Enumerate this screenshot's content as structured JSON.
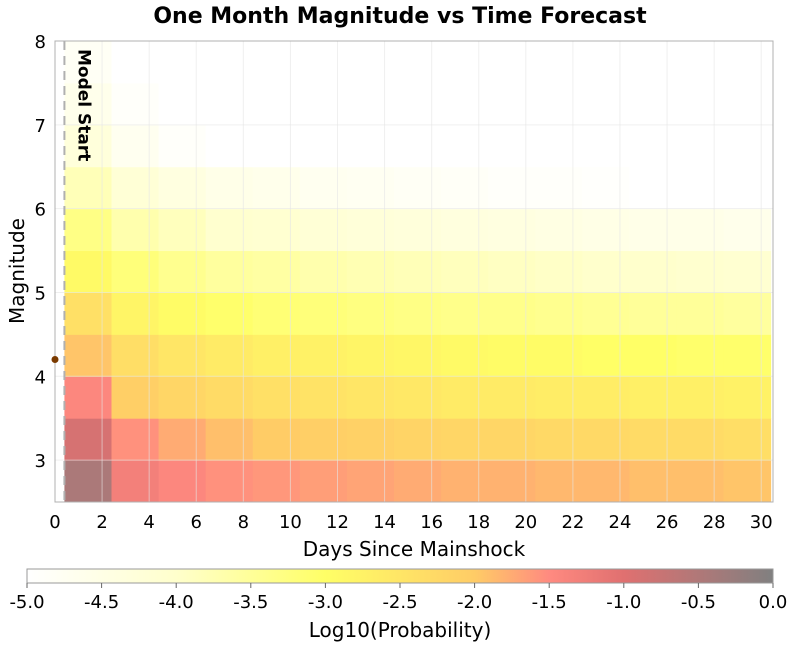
{
  "chart_data": {
    "type": "heatmap",
    "title": "One Month Magnitude vs Time Forecast",
    "xlabel": "Days Since Mainshock",
    "ylabel": "Magnitude",
    "xlim": [
      0,
      30.5
    ],
    "ylim": [
      2.5,
      8
    ],
    "x_ticks": [
      "0",
      "2",
      "4",
      "6",
      "8",
      "10",
      "12",
      "14",
      "16",
      "18",
      "20",
      "22",
      "24",
      "26",
      "28",
      "30"
    ],
    "y_ticks": [
      "3",
      "4",
      "5",
      "6",
      "7",
      "8"
    ],
    "annotation": "Model Start",
    "model_start_day": 0.4,
    "mainshock": {
      "day": 0.0,
      "magnitude": 4.2
    },
    "x_edges": [
      0.4,
      2.4,
      4.4,
      6.4,
      8.4,
      10.4,
      12.4,
      14.4,
      16.4,
      18.4,
      20.4,
      22.4,
      24.4,
      26.4,
      28.4,
      30.4
    ],
    "y_edges": [
      2.5,
      3.0,
      3.5,
      4.0,
      4.5,
      5.0,
      5.5,
      6.0,
      6.5,
      7.0,
      7.5,
      8.0
    ],
    "grid": true,
    "log10_probability": [
      [
        -0.45,
        -1.3,
        -1.45,
        -1.55,
        -1.6,
        -1.65,
        -1.7,
        -1.75,
        -1.8,
        -1.8,
        -1.85,
        -1.85,
        -1.9,
        -1.9,
        -1.95
      ],
      [
        -0.9,
        -1.55,
        -1.75,
        -1.9,
        -2.0,
        -2.05,
        -2.1,
        -2.15,
        -2.2,
        -2.2,
        -2.25,
        -2.25,
        -2.3,
        -2.3,
        -2.35
      ],
      [
        -1.45,
        -2.05,
        -2.2,
        -2.3,
        -2.4,
        -2.45,
        -2.5,
        -2.55,
        -2.6,
        -2.6,
        -2.65,
        -2.65,
        -2.7,
        -2.7,
        -2.75
      ],
      [
        -1.95,
        -2.35,
        -2.5,
        -2.6,
        -2.7,
        -2.75,
        -2.8,
        -2.85,
        -2.9,
        -2.95,
        -2.95,
        -3.0,
        -3.0,
        -3.05,
        -3.05
      ],
      [
        -2.4,
        -2.8,
        -2.95,
        -3.05,
        -3.15,
        -3.2,
        -3.25,
        -3.3,
        -3.35,
        -3.35,
        -3.4,
        -3.45,
        -3.5,
        -3.5,
        -3.55
      ],
      [
        -2.9,
        -3.2,
        -3.4,
        -3.55,
        -3.6,
        -3.7,
        -3.75,
        -3.8,
        -3.85,
        -3.9,
        -3.95,
        -4.0,
        -4.0,
        -4.05,
        -4.1
      ],
      [
        -3.3,
        -3.7,
        -3.85,
        -4.05,
        -4.1,
        -4.2,
        -4.25,
        -4.3,
        -4.35,
        -4.4,
        -4.45,
        -4.5,
        -4.55,
        -4.55,
        -4.6
      ],
      [
        -3.8,
        -4.2,
        -4.4,
        -4.55,
        -4.6,
        -4.7,
        -4.75,
        -4.8,
        -4.85,
        -4.9,
        -4.9,
        -4.95,
        -5.0,
        -5.0,
        -5.0
      ],
      [
        -4.3,
        -4.7,
        -4.9,
        -5.0,
        -5.0,
        -5.0,
        -5.0,
        -5.0,
        -5.0,
        -5.0,
        -5.0,
        -5.0,
        -5.0,
        -5.0,
        -5.0
      ],
      [
        -4.6,
        -4.9,
        -5.0,
        -5.0,
        -5.0,
        -5.0,
        -5.0,
        -5.0,
        -5.0,
        -5.0,
        -5.0,
        -5.0,
        -5.0,
        -5.0,
        -5.0
      ],
      [
        -4.8,
        -5.0,
        -5.0,
        -5.0,
        -5.0,
        -5.0,
        -5.0,
        -5.0,
        -5.0,
        -5.0,
        -5.0,
        -5.0,
        -5.0,
        -5.0,
        -5.0
      ]
    ],
    "colorbar": {
      "label": "Log10(Probability)",
      "range": [
        -5.0,
        0.0
      ],
      "ticks": [
        "-5.0",
        "-4.5",
        "-4.0",
        "-3.5",
        "-3.0",
        "-2.5",
        "-2.0",
        "-1.5",
        "-1.0",
        "-0.5",
        "0.0"
      ],
      "colors": [
        {
          "v": -5.0,
          "c": "#ffffff"
        },
        {
          "v": -4.0,
          "c": "#ffffcc"
        },
        {
          "v": -3.0,
          "c": "#ffff66"
        },
        {
          "v": -2.0,
          "c": "#ffcc66"
        },
        {
          "v": -1.5,
          "c": "#ff8a80"
        },
        {
          "v": -1.0,
          "c": "#e07070"
        },
        {
          "v": 0.0,
          "c": "#808080"
        }
      ]
    },
    "colors": {
      "model_start_line": "#b0b0b0",
      "mainshock_marker": "#7a3a00",
      "grid": "#e6e6e6"
    }
  }
}
